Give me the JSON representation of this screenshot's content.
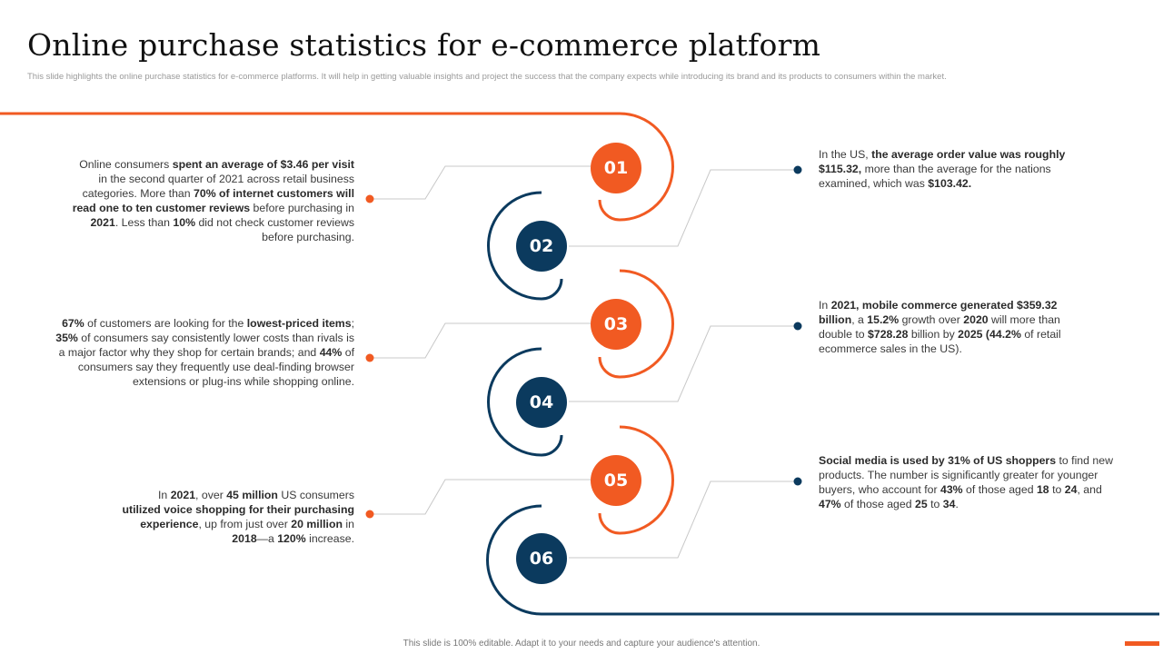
{
  "title": "Online purchase statistics for e-commerce platform",
  "subtitle": "This slide highlights the online purchase statistics for e-commerce platforms. It will help in getting valuable insights and project the success that the company expects while introducing its brand and its products to consumers within the market.",
  "colors": {
    "orange": "#f15a22",
    "navy": "#0b3a5e",
    "connector": "#c8c8c8"
  },
  "steps": [
    {
      "number": "01",
      "color": "orange"
    },
    {
      "number": "02",
      "color": "navy"
    },
    {
      "number": "03",
      "color": "orange"
    },
    {
      "number": "04",
      "color": "navy"
    },
    {
      "number": "05",
      "color": "orange"
    },
    {
      "number": "06",
      "color": "navy"
    }
  ],
  "stats": {
    "s1": {
      "t1": "Online consumers ",
      "b1": "spent an average of $3.46 per visit",
      "t2": " in the second quarter of 2021 across retail business categories. More than ",
      "b2": "70% of internet customers  will read one to ten customer reviews",
      "t3": " before purchasing in ",
      "b3": "2021",
      "t4": ". Less than ",
      "b4": "10%",
      "t5": " did not check customer reviews  before  purchasing."
    },
    "s2": {
      "t1": "In the US, ",
      "b1": "the average order value was roughly $115.32,",
      "t2": "  more than the average  for the nations examined, which was ",
      "b2": "$103.42."
    },
    "s3": {
      "b1": "67%",
      "t1": " of customers are looking for the ",
      "b2": "lowest-priced items",
      "t2": "; ",
      "b3": "35%",
      "t3": " of consumers say consistently lower costs than rivals  is a major factor why they shop for certain brands; and ",
      "b4": "44%",
      "t4": "  of consumers  say they frequently  use deal-finding  browser extensions or plug-ins while shopping online."
    },
    "s4": {
      "t1": "In ",
      "b1": "2021, mobile commerce generated $359.32 billion",
      "t2": ", a ",
      "b2": "15.2%",
      "t3": "  growth over  ",
      "b3": "2020",
      "t4": " will more than double to ",
      "b4": "$728.28",
      "t5": " billion by ",
      "b5": "2025 (44.2%",
      "t6": " of retail ecommerce  sales in the US)."
    },
    "s5": {
      "t1": "In ",
      "b1": "2021",
      "t2": ", over  ",
      "b2": "45 million",
      "t3": " US consumers ",
      "b3": "utilized voice shopping  for their purchasing experience",
      "t4": ", up from just over ",
      "b4": "20 million",
      "t5": " in ",
      "b5": "2018",
      "t6": "—a ",
      "b6": "120%",
      "t7": "  increase."
    },
    "s6": {
      "b1": "Social media is used by 31%  of US shoppers",
      "t1": " to find new products. The  number is significantly greater for younger buyers,  who account for ",
      "b2": "43%",
      "t2": "  of those aged ",
      "b3": "18",
      "t3": " to ",
      "b4": "24",
      "t4": ", and ",
      "b5": "47%",
      "t5": "  of those aged ",
      "b6": "25",
      "t6": " to ",
      "b7": "34",
      "t7": "."
    }
  },
  "footer": "This slide is 100% editable.  Adapt it to your needs and capture your audience's attention."
}
